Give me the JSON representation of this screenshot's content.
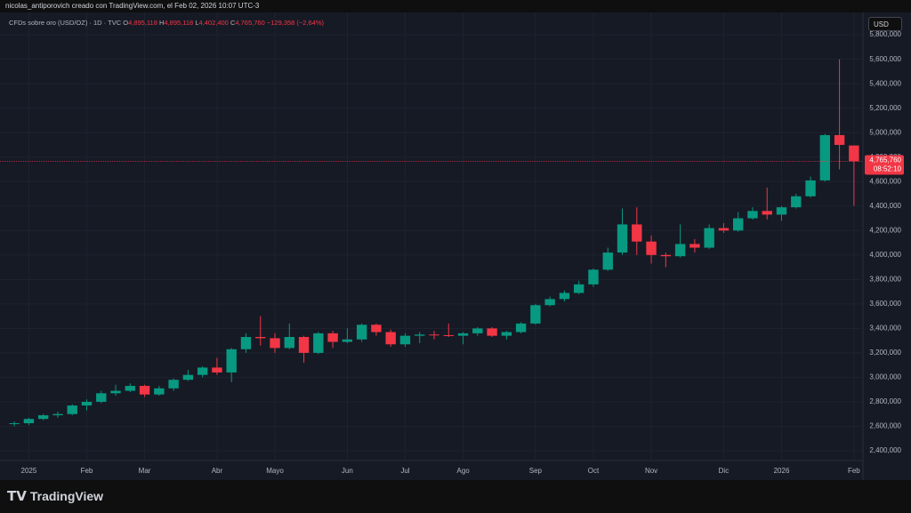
{
  "header": {
    "author_line": "nicolas_antiporovich creado con TradingView.com, el Feb 02, 2026 10:07 UTC-3"
  },
  "legend": {
    "symbol": "CFDs sobre oro (USD/OZ) · 1D · TVC",
    "open_label": "O",
    "open": "4,895,118",
    "high_label": "H",
    "high": "4,895,118",
    "low_label": "L",
    "low": "4,402,400",
    "close_label": "C",
    "close": "4,765,760",
    "change": "−129,358 (−2,64%)"
  },
  "currency": "USD",
  "logo": "TradingView",
  "chart_data": {
    "type": "candlestick",
    "categories": [
      null,
      "2025",
      null,
      null,
      null,
      "Feb",
      null,
      null,
      null,
      "Mar",
      null,
      null,
      null,
      null,
      "Abr",
      null,
      null,
      null,
      "Mayo",
      null,
      null,
      null,
      null,
      "Jun",
      null,
      null,
      null,
      "Jul",
      null,
      null,
      null,
      "Ago",
      null,
      null,
      null,
      null,
      "Sep",
      null,
      null,
      null,
      "Oct",
      null,
      null,
      null,
      "Nov",
      null,
      null,
      null,
      null,
      "Dic",
      null,
      null,
      null,
      "2026",
      null,
      null,
      null,
      null,
      "Feb"
    ],
    "ohlc": [
      [
        2620000,
        2640000,
        2600000,
        2625000
      ],
      [
        2625000,
        2670000,
        2610000,
        2660000
      ],
      [
        2660000,
        2700000,
        2650000,
        2690000
      ],
      [
        2690000,
        2720000,
        2670000,
        2700000
      ],
      [
        2700000,
        2780000,
        2690000,
        2770000
      ],
      [
        2770000,
        2820000,
        2730000,
        2800000
      ],
      [
        2800000,
        2890000,
        2790000,
        2870000
      ],
      [
        2870000,
        2940000,
        2850000,
        2890000
      ],
      [
        2890000,
        2950000,
        2880000,
        2930000
      ],
      [
        2930000,
        2940000,
        2840000,
        2860000
      ],
      [
        2860000,
        2930000,
        2850000,
        2910000
      ],
      [
        2910000,
        2990000,
        2890000,
        2980000
      ],
      [
        2980000,
        3060000,
        2970000,
        3020000
      ],
      [
        3020000,
        3090000,
        3000000,
        3080000
      ],
      [
        3080000,
        3160000,
        3020000,
        3040000
      ],
      [
        3040000,
        3240000,
        2960000,
        3230000
      ],
      [
        3230000,
        3360000,
        3200000,
        3330000
      ],
      [
        3330000,
        3500000,
        3260000,
        3320000
      ],
      [
        3320000,
        3360000,
        3200000,
        3240000
      ],
      [
        3240000,
        3440000,
        3230000,
        3330000
      ],
      [
        3330000,
        3340000,
        3120000,
        3200000
      ],
      [
        3200000,
        3370000,
        3190000,
        3360000
      ],
      [
        3360000,
        3380000,
        3240000,
        3290000
      ],
      [
        3290000,
        3400000,
        3280000,
        3310000
      ],
      [
        3310000,
        3440000,
        3290000,
        3430000
      ],
      [
        3430000,
        3440000,
        3340000,
        3370000
      ],
      [
        3370000,
        3390000,
        3250000,
        3270000
      ],
      [
        3270000,
        3360000,
        3250000,
        3340000
      ],
      [
        3340000,
        3370000,
        3280000,
        3350000
      ],
      [
        3350000,
        3380000,
        3310000,
        3345000
      ],
      [
        3345000,
        3440000,
        3330000,
        3340000
      ],
      [
        3340000,
        3370000,
        3270000,
        3360000
      ],
      [
        3360000,
        3410000,
        3340000,
        3400000
      ],
      [
        3400000,
        3410000,
        3330000,
        3340000
      ],
      [
        3340000,
        3380000,
        3310000,
        3370000
      ],
      [
        3370000,
        3450000,
        3360000,
        3440000
      ],
      [
        3440000,
        3600000,
        3430000,
        3590000
      ],
      [
        3590000,
        3660000,
        3580000,
        3640000
      ],
      [
        3640000,
        3710000,
        3620000,
        3690000
      ],
      [
        3690000,
        3790000,
        3680000,
        3760000
      ],
      [
        3760000,
        3890000,
        3740000,
        3880000
      ],
      [
        3880000,
        4060000,
        3870000,
        4020000
      ],
      [
        4020000,
        4380000,
        4000000,
        4250000
      ],
      [
        4250000,
        4390000,
        4000000,
        4110000
      ],
      [
        4110000,
        4160000,
        3930000,
        4000000
      ],
      [
        4000000,
        4020000,
        3900000,
        3990000
      ],
      [
        3990000,
        4250000,
        3980000,
        4090000
      ],
      [
        4090000,
        4130000,
        4020000,
        4060000
      ],
      [
        4060000,
        4250000,
        4050000,
        4220000
      ],
      [
        4220000,
        4260000,
        4180000,
        4200000
      ],
      [
        4200000,
        4350000,
        4190000,
        4300000
      ],
      [
        4300000,
        4390000,
        4290000,
        4360000
      ],
      [
        4360000,
        4550000,
        4290000,
        4330000
      ],
      [
        4330000,
        4400000,
        4280000,
        4390000
      ],
      [
        4390000,
        4500000,
        4380000,
        4480000
      ],
      [
        4480000,
        4640000,
        4470000,
        4610000
      ],
      [
        4610000,
        4990000,
        4600000,
        4980000
      ],
      [
        4980000,
        5600000,
        4700000,
        4900000
      ],
      [
        4895118,
        4895118,
        4402400,
        4765760
      ]
    ],
    "up_color": "#089981",
    "down_color": "#f23645",
    "ylim": [
      2320000,
      5830000
    ],
    "yticks": [
      {
        "value": 2400000,
        "label": "2,400,000"
      },
      {
        "value": 2600000,
        "label": "2,600,000"
      },
      {
        "value": 2800000,
        "label": "2,800,000"
      },
      {
        "value": 3000000,
        "label": "3,000,000"
      },
      {
        "value": 3200000,
        "label": "3,200,000"
      },
      {
        "value": 3400000,
        "label": "3,400,000"
      },
      {
        "value": 3600000,
        "label": "3,600,000"
      },
      {
        "value": 3800000,
        "label": "3,800,000"
      },
      {
        "value": 4000000,
        "label": "4,000,000"
      },
      {
        "value": 4200000,
        "label": "4,200,000"
      },
      {
        "value": 4400000,
        "label": "4,400,000"
      },
      {
        "value": 4600000,
        "label": "4,600,000"
      },
      {
        "value": 4800000,
        "label": "4,800,000"
      },
      {
        "value": 5000000,
        "label": "5,000,000"
      },
      {
        "value": 5200000,
        "label": "5,200,000"
      },
      {
        "value": 5400000,
        "label": "5,400,000"
      },
      {
        "value": 5600000,
        "label": "5,600,000"
      },
      {
        "value": 5800000,
        "label": "5,800,000"
      }
    ],
    "grid": true,
    "last_price_label": "4,765,760",
    "countdown": "08:52:10"
  }
}
